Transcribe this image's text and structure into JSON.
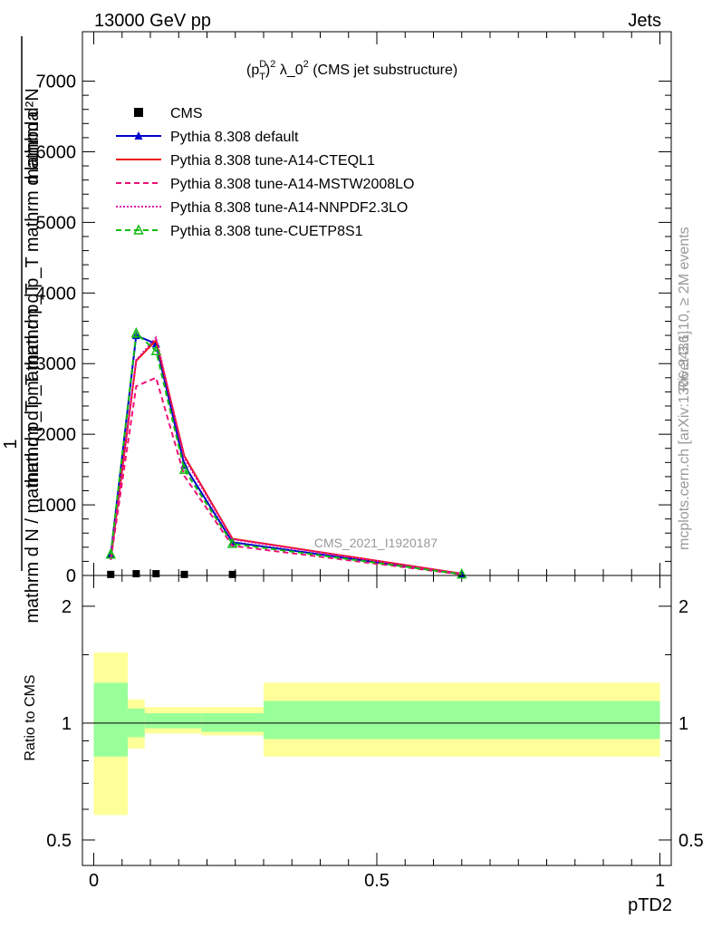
{
  "header": {
    "left": "13000 GeV pp",
    "right": "Jets"
  },
  "side": {
    "rivet": "Rivet 3.1.10, ≥ 2M events",
    "mcplots": "mcplots.cern.ch [arXiv:1306.3436]"
  },
  "watermark": "CMS_2021_I1920187",
  "chart_data": {
    "type": "line",
    "title_parts": {
      "open": "(p",
      "sup": "D",
      "sub": "T",
      "close_sup": "2",
      "rest": " λ_0",
      "rest_sup": "2",
      "tail": " (CMS jet substructure)"
    },
    "xlabel": "pTD2",
    "ylabel": {
      "numerator": "1",
      "denominator": "mathrm d N / mathrm d p_T mathrm d p_T",
      "upper": "mathrm d²N",
      "upper2": "mathrm d p_T mathrm d p_T mathrm d lambda"
    },
    "main_yticks": [
      {
        "v": 0,
        "label": "0"
      },
      {
        "v": 1000,
        "label": "1000"
      },
      {
        "v": 2000,
        "label": "2000"
      },
      {
        "v": 3000,
        "label": "3000"
      },
      {
        "v": 4000,
        "label": "4000"
      },
      {
        "v": 5000,
        "label": "5000"
      },
      {
        "v": 6000,
        "label": "6000"
      },
      {
        "v": 7000,
        "label": "7000"
      }
    ],
    "xticks": [
      {
        "v": 0,
        "label": "0"
      },
      {
        "v": 0.5,
        "label": "0.5"
      },
      {
        "v": 1,
        "label": "1"
      }
    ],
    "ratio_ylabel": "Ratio to CMS",
    "ratio_yticks": [
      {
        "v": 0.5,
        "label": "0.5"
      },
      {
        "v": 1,
        "label": "1"
      },
      {
        "v": 2,
        "label": "2"
      }
    ],
    "xlim": [
      -0.02,
      1.02
    ],
    "ylim": [
      0,
      7700
    ],
    "ratio_ylim": [
      0.43,
      2.4
    ],
    "x": [
      0.03,
      0.075,
      0.11,
      0.16,
      0.245,
      0.65
    ],
    "series": [
      {
        "name": "CMS",
        "color": "#000000",
        "style": "solid",
        "marker": "square",
        "values": [
          15,
          25,
          25,
          15,
          15,
          0
        ]
      },
      {
        "name": "Pythia 8.308 default",
        "color": "#0000cc",
        "style": "solid",
        "marker": "triangle",
        "values": [
          290,
          3400,
          3280,
          1560,
          470,
          20
        ]
      },
      {
        "name": "Pythia 8.308 tune-A14-CTEQL1",
        "color": "#ee1111",
        "style": "solid",
        "marker": "none",
        "values": [
          230,
          3040,
          3330,
          1690,
          520,
          25
        ]
      },
      {
        "name": "Pythia 8.308 tune-A14-MSTW2008LO",
        "color": "#ee1177",
        "style": "dashed",
        "marker": "none",
        "values": [
          220,
          2680,
          2800,
          1410,
          420,
          15
        ]
      },
      {
        "name": "Pythia 8.308 tune-A14-NNPDF2.3LO",
        "color": "#dd11aa",
        "style": "dotted",
        "marker": "none",
        "values": [
          240,
          3050,
          3370,
          1660,
          510,
          25
        ]
      },
      {
        "name": "Pythia 8.308 tune-CUETP8S1",
        "color": "#11bb11",
        "style": "dashed",
        "marker": "open-triangle",
        "values": [
          300,
          3430,
          3180,
          1500,
          450,
          18
        ]
      }
    ],
    "ratio_bands": [
      {
        "x0": 0.0,
        "x1": 0.06,
        "in_lo": 0.82,
        "in_hi": 1.27,
        "out_lo": 0.58,
        "out_hi": 1.52
      },
      {
        "x0": 0.06,
        "x1": 0.09,
        "in_lo": 0.92,
        "in_hi": 1.09,
        "out_lo": 0.86,
        "out_hi": 1.15
      },
      {
        "x0": 0.09,
        "x1": 0.19,
        "in_lo": 0.97,
        "in_hi": 1.06,
        "out_lo": 0.94,
        "out_hi": 1.1
      },
      {
        "x0": 0.19,
        "x1": 0.3,
        "in_lo": 0.95,
        "in_hi": 1.06,
        "out_lo": 0.93,
        "out_hi": 1.1
      },
      {
        "x0": 0.3,
        "x1": 1.0,
        "in_lo": 0.91,
        "in_hi": 1.14,
        "out_lo": 0.82,
        "out_hi": 1.27
      }
    ],
    "band_colors": {
      "inner": "#99ff99",
      "outer": "#ffff99"
    }
  }
}
